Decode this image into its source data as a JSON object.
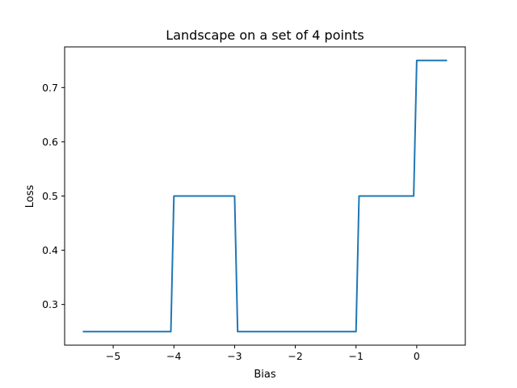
{
  "chart_data": {
    "type": "line",
    "title": "Landscape on a set of 4 points",
    "xlabel": "Bias",
    "ylabel": "Loss",
    "xlim": [
      -5.8,
      0.8
    ],
    "ylim": [
      0.225,
      0.775
    ],
    "grid": false,
    "xticks": [
      -5,
      -4,
      -3,
      -2,
      -1,
      0
    ],
    "xtick_labels": [
      "−5",
      "−4",
      "−3",
      "−2",
      "−1",
      "0"
    ],
    "yticks": [
      0.3,
      0.4,
      0.5,
      0.6,
      0.7
    ],
    "ytick_labels": [
      "0.3",
      "0.4",
      "0.5",
      "0.6",
      "0.7"
    ],
    "series": [
      {
        "color": "#1f77b4",
        "x": [
          -5.5,
          -4.05,
          -4.0,
          -3.0,
          -2.95,
          -1.0,
          -0.95,
          -0.05,
          0.0,
          0.5
        ],
        "y": [
          0.25,
          0.25,
          0.5,
          0.5,
          0.25,
          0.25,
          0.5,
          0.5,
          0.75,
          0.75
        ]
      }
    ]
  }
}
